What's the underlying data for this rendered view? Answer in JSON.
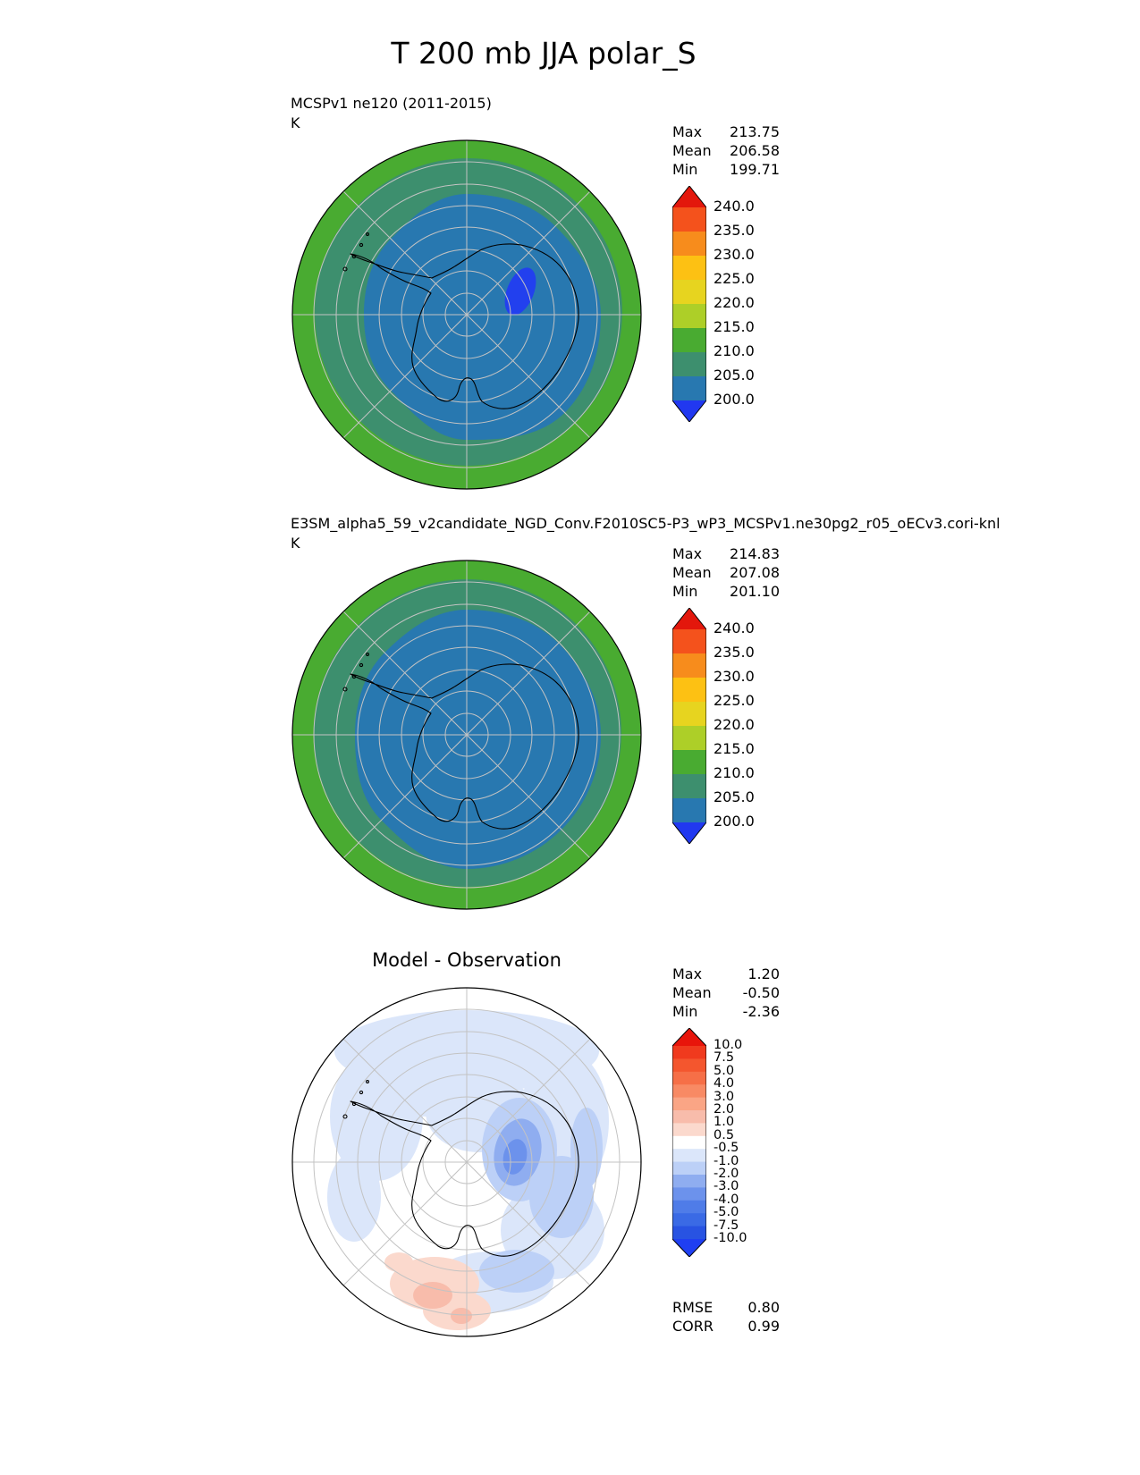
{
  "title": "T 200 mb JJA polar_S",
  "colors": {
    "map_green": "#49ab31",
    "map_seagreen": "#3d8f6e",
    "map_tealblue": "#2878b0",
    "map_deepblue": "#2240ee",
    "grid_gray": "#c3c3c3",
    "coast_black": "#000000",
    "white": "#ffffff",
    "diff_light_blue": "#dbe6fa",
    "diff_mid_blue": "#bcd0f7",
    "diff_strong_blue": "#8fadf0",
    "diff_core_blue": "#6c92ec",
    "diff_light_pink": "#fbd9cd",
    "diff_mid_pink": "#f8bcab"
  },
  "panels": [
    {
      "label": "MCSPv1 ne120 (2011-2015)",
      "units": "K",
      "stats": [
        {
          "name": "Max",
          "value": "213.75"
        },
        {
          "name": "Mean",
          "value": "206.58"
        },
        {
          "name": "Min",
          "value": "199.71"
        }
      ],
      "colorbar": {
        "arrow_top": "#e3170c",
        "arrow_bottom": "#2138f0",
        "cells": [
          "#f4521c",
          "#f78c1c",
          "#fdc113",
          "#e7d41f",
          "#adcf28",
          "#49ab31",
          "#3d8f6e",
          "#2878b0"
        ],
        "ticks": [
          "240.0",
          "235.0",
          "230.0",
          "225.0",
          "220.0",
          "215.0",
          "210.0",
          "205.0",
          "200.0"
        ]
      }
    },
    {
      "label": "E3SM_alpha5_59_v2candidate_NGD_Conv.F2010SC5-P3_wP3_MCSPv1.ne30pg2_r05_oECv3.cori-knl",
      "units": "K",
      "stats": [
        {
          "name": "Max",
          "value": "214.83"
        },
        {
          "name": "Mean",
          "value": "207.08"
        },
        {
          "name": "Min",
          "value": "201.10"
        }
      ],
      "colorbar": {
        "arrow_top": "#e3170c",
        "arrow_bottom": "#2138f0",
        "cells": [
          "#f4521c",
          "#f78c1c",
          "#fdc113",
          "#e7d41f",
          "#adcf28",
          "#49ab31",
          "#3d8f6e",
          "#2878b0"
        ],
        "ticks": [
          "240.0",
          "235.0",
          "230.0",
          "225.0",
          "220.0",
          "215.0",
          "210.0",
          "205.0",
          "200.0"
        ]
      }
    },
    {
      "label": "Model - Observation",
      "stats": [
        {
          "name": "Max",
          "value": "1.20"
        },
        {
          "name": "Mean",
          "value": "-0.50"
        },
        {
          "name": "Min",
          "value": "-2.36"
        }
      ],
      "colorbar": {
        "arrow_top": "#e8150b",
        "arrow_bottom": "#1f3ff2",
        "cells": [
          "#f03a1e",
          "#f4562e",
          "#f66f47",
          "#f88a64",
          "#faa585",
          "#f8bcab",
          "#fbd9cd",
          "#ffffff",
          "#dbe6fa",
          "#bcd0f7",
          "#8fadf0",
          "#6c92ec",
          "#4f7ce8",
          "#3a6ae5",
          "#2853e2"
        ],
        "ticks": [
          "10.0",
          "7.5",
          "5.0",
          "4.0",
          "3.0",
          "2.0",
          "1.0",
          "0.5",
          "-0.5",
          "-1.0",
          "-2.0",
          "-3.0",
          "-4.0",
          "-5.0",
          "-7.5",
          "-10.0"
        ]
      },
      "metrics": [
        {
          "name": "RMSE",
          "value": "0.80"
        },
        {
          "name": "CORR",
          "value": "0.99"
        }
      ]
    }
  ],
  "chart_data": [
    {
      "type": "heatmap",
      "subtype": "polar_stereographic_contour_map",
      "title": "MCSPv1 ne120 (2011-2015)",
      "variable": "T 200 mb JJA polar_S",
      "units": "K",
      "contour_levels": [
        200.0,
        205.0,
        210.0,
        215.0,
        220.0,
        225.0,
        230.0,
        235.0,
        240.0
      ],
      "stats": {
        "max": 213.75,
        "mean": 206.58,
        "min": 199.71
      },
      "legend_position": "right",
      "grid": true
    },
    {
      "type": "heatmap",
      "subtype": "polar_stereographic_contour_map",
      "title": "E3SM_alpha5_59_v2candidate_NGD_Conv.F2010SC5-P3_wP3_MCSPv1.ne30pg2_r05_oECv3.cori-knl",
      "variable": "T 200 mb JJA polar_S",
      "units": "K",
      "contour_levels": [
        200.0,
        205.0,
        210.0,
        215.0,
        220.0,
        225.0,
        230.0,
        235.0,
        240.0
      ],
      "stats": {
        "max": 214.83,
        "mean": 207.08,
        "min": 201.1
      },
      "legend_position": "right",
      "grid": true
    },
    {
      "type": "heatmap",
      "subtype": "polar_stereographic_difference_map",
      "title": "Model - Observation",
      "units": "K",
      "contour_levels": [
        -10.0,
        -7.5,
        -5.0,
        -4.0,
        -3.0,
        -2.0,
        -1.0,
        -0.5,
        0.5,
        1.0,
        2.0,
        3.0,
        4.0,
        5.0,
        7.5,
        10.0
      ],
      "stats": {
        "max": 1.2,
        "mean": -0.5,
        "min": -2.36
      },
      "metrics": {
        "rmse": 0.8,
        "corr": 0.99
      },
      "legend_position": "right",
      "grid": true
    }
  ]
}
